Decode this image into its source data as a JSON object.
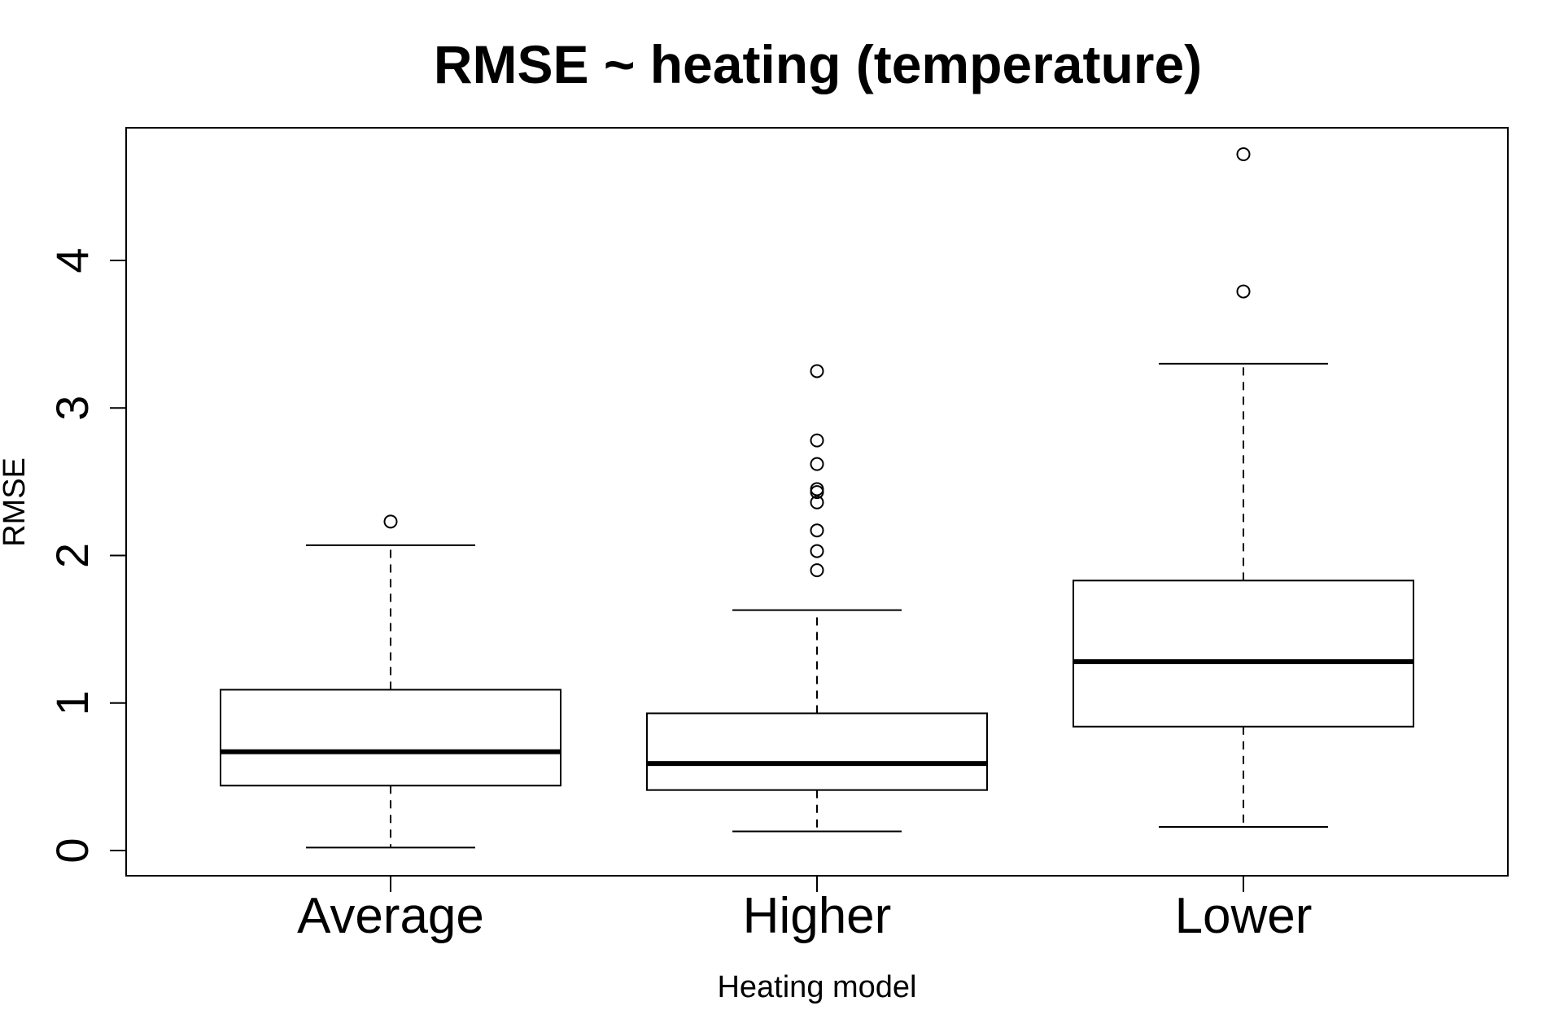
{
  "chart_data": {
    "type": "box",
    "title": "RMSE ~ heating (temperature)",
    "xlabel": "Heating model",
    "ylabel": "RMSE",
    "ylim": [
      0,
      4.8
    ],
    "yticks": [
      0,
      1,
      2,
      3,
      4
    ],
    "grid": false,
    "categories": [
      "Average",
      "Higher",
      "Lower"
    ],
    "boxes": [
      {
        "category": "Average",
        "whisker_low": 0.02,
        "q1": 0.44,
        "median": 0.67,
        "q3": 1.09,
        "whisker_high": 2.07,
        "outliers": [
          2.23
        ]
      },
      {
        "category": "Higher",
        "whisker_low": 0.13,
        "q1": 0.41,
        "median": 0.59,
        "q3": 0.93,
        "whisker_high": 1.63,
        "outliers": [
          1.9,
          2.03,
          2.17,
          2.36,
          2.43,
          2.45,
          2.62,
          2.78,
          3.25
        ]
      },
      {
        "category": "Lower",
        "whisker_low": 0.16,
        "q1": 0.84,
        "median": 1.28,
        "q3": 1.83,
        "whisker_high": 3.3,
        "outliers": [
          3.79,
          4.72
        ]
      }
    ]
  }
}
